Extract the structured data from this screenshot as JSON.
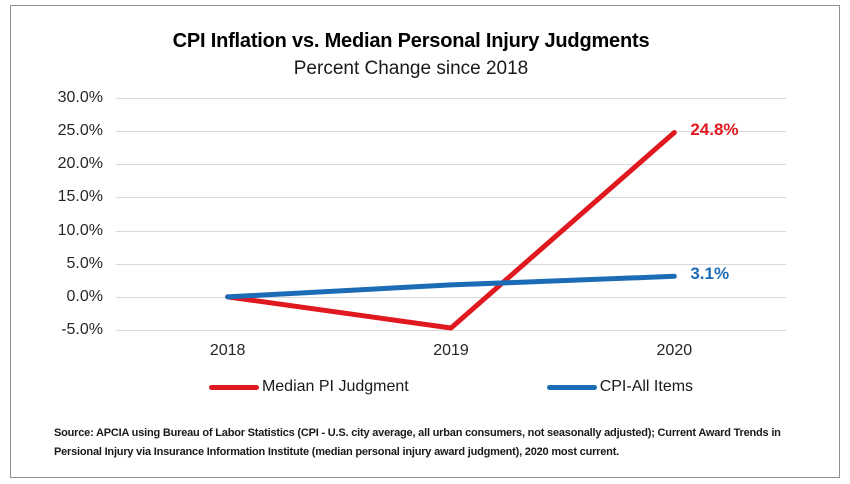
{
  "chart": {
    "title": "CPI Inflation vs. Median Personal Injury Judgments",
    "subtitle": "Percent Change since 2018"
  },
  "chart_data": {
    "type": "line",
    "title": "CPI Inflation vs. Median Personal Injury Judgments",
    "subtitle": "Percent Change since 2018",
    "xlabel": "",
    "ylabel": "",
    "categories": [
      "2018",
      "2019",
      "2020"
    ],
    "series": [
      {
        "name": "Median PI Judgment",
        "values": [
          0.0,
          -4.7,
          24.8
        ],
        "color": "#e0181f",
        "end_label": "24.8%"
      },
      {
        "name": "CPI-All Items",
        "values": [
          0.0,
          1.8,
          3.1
        ],
        "color": "#1b6cb5",
        "end_label": "3.1%"
      }
    ],
    "ylim": [
      -5,
      30
    ],
    "ytick_values": [
      30,
      25,
      20,
      15,
      10,
      5,
      0,
      -5
    ],
    "ytick_labels": [
      "30.0%",
      "25.0%",
      "20.0%",
      "15.0%",
      "10.0%",
      "5.0%",
      "0.0%",
      "-5.0%"
    ],
    "grid": "horizontal",
    "gridline_color": "#d9d9d9",
    "legend_position": "bottom"
  },
  "source": {
    "text": "Source: APCIA using Bureau of Labor Statistics (CPI - U.S. city average, all urban consumers, not seasonally adjusted); Current Award Trends in Persional Injury via Insurance Information Institute (median personal injury award judgment), 2020 most current."
  }
}
